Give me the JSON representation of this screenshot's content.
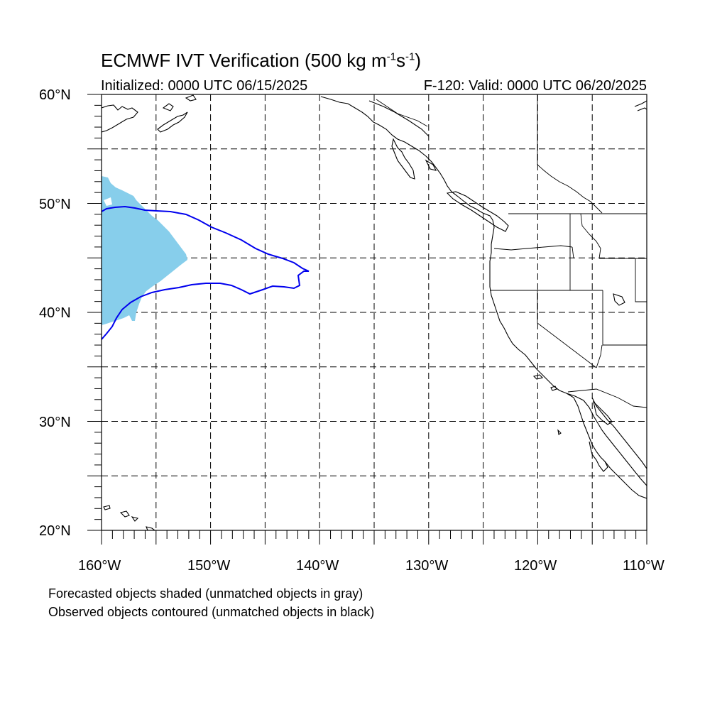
{
  "title": {
    "main": "ECMWF IVT Verification (500 kg m",
    "sup1": "-1",
    "mid": "s",
    "sup2": "-1",
    "end": ")"
  },
  "subtitle_left": "Initialized: 0000 UTC 06/15/2025",
  "subtitle_right": "F-120: Valid: 0000 UTC 06/20/2025",
  "lat_labels": [
    "60°N",
    "50°N",
    "40°N",
    "30°N",
    "20°N"
  ],
  "lon_labels": [
    "160°W",
    "150°W",
    "140°W",
    "130°W",
    "120°W",
    "110°W"
  ],
  "notes": [
    "Forecasted objects shaded (unmatched objects in gray)",
    "Observed objects contoured (unmatched objects in black)"
  ],
  "colors": {
    "forecast_fill": "#87ceeb",
    "observed_contour": "#0000ee",
    "coastline": "#000000",
    "grid": "#000000"
  },
  "map_extent": {
    "lon_min": -160,
    "lon_max": -110,
    "lat_min": 20,
    "lat_max": 60
  },
  "grid_spacing_deg": 5
}
